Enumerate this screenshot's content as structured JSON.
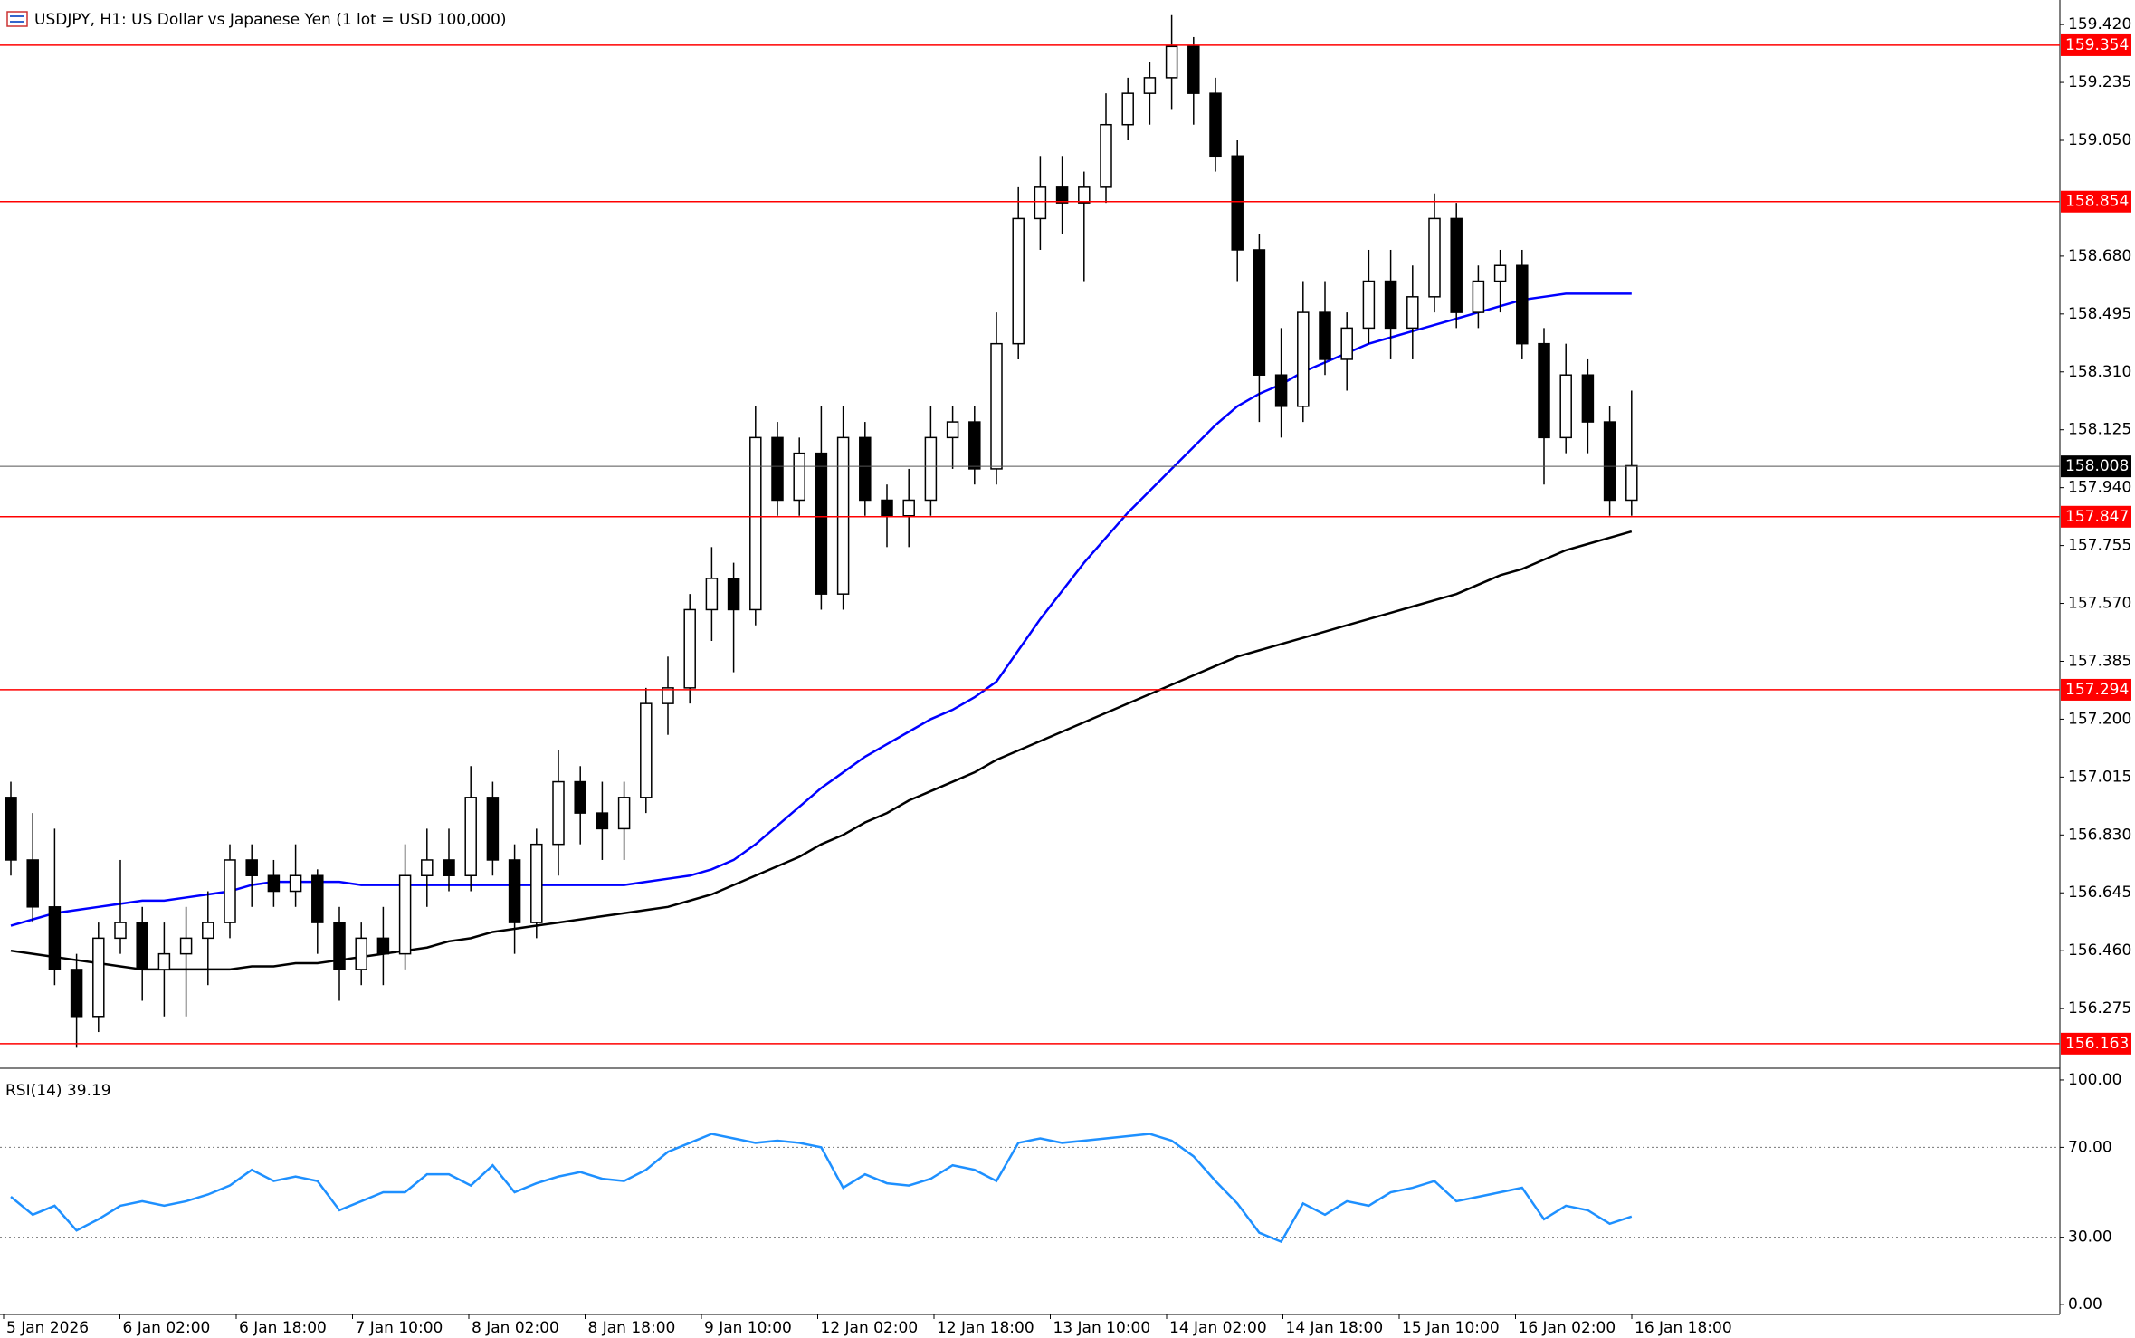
{
  "chart_data": {
    "type": "candlestick",
    "title": "USDJPY, H1:  US Dollar vs Japanese Yen (1 lot = USD 100,000)",
    "x_labels": [
      "5 Jan 2026",
      "6 Jan 02:00",
      "6 Jan 18:00",
      "7 Jan 10:00",
      "8 Jan 02:00",
      "8 Jan 18:00",
      "9 Jan 10:00",
      "12 Jan 02:00",
      "12 Jan 18:00",
      "13 Jan 10:00",
      "14 Jan 02:00",
      "14 Jan 18:00",
      "15 Jan 10:00",
      "16 Jan 02:00",
      "16 Jan 18:00"
    ],
    "ylim": [
      156.096,
      159.484
    ],
    "yticks": [
      {
        "value": 159.42,
        "label": "159.420"
      },
      159.235,
      {
        "value": 159.05,
        "label": "159.050"
      },
      {
        "value": 158.68,
        "label": "158.680"
      },
      158.495,
      {
        "value": 158.31,
        "label": "158.310"
      },
      158.125,
      {
        "value": 157.94,
        "label": "157.940"
      },
      157.755,
      {
        "value": 157.57,
        "label": "157.570"
      },
      157.385,
      {
        "value": 157.2,
        "label": "157.200"
      },
      157.015,
      {
        "value": 156.83,
        "label": "156.830"
      },
      156.645,
      {
        "value": 156.46,
        "label": "156.460"
      },
      156.275
    ],
    "up_color": "#ffffff",
    "down_color": "#000000",
    "ohlc": [
      [
        156.95,
        157.0,
        156.7,
        156.75
      ],
      [
        156.75,
        156.9,
        156.55,
        156.6
      ],
      [
        156.6,
        156.85,
        156.35,
        156.4
      ],
      [
        156.4,
        156.45,
        156.15,
        156.25
      ],
      [
        156.25,
        156.55,
        156.2,
        156.5
      ],
      [
        156.5,
        156.75,
        156.45,
        156.55
      ],
      [
        156.55,
        156.6,
        156.3,
        156.4
      ],
      [
        156.4,
        156.55,
        156.25,
        156.45
      ],
      [
        156.45,
        156.6,
        156.25,
        156.5
      ],
      [
        156.5,
        156.65,
        156.35,
        156.55
      ],
      [
        156.55,
        156.8,
        156.5,
        156.75
      ],
      [
        156.75,
        156.8,
        156.6,
        156.7
      ],
      [
        156.7,
        156.75,
        156.6,
        156.65
      ],
      [
        156.65,
        156.8,
        156.6,
        156.7
      ],
      [
        156.7,
        156.72,
        156.45,
        156.55
      ],
      [
        156.55,
        156.6,
        156.3,
        156.4
      ],
      [
        156.4,
        156.55,
        156.35,
        156.5
      ],
      [
        156.5,
        156.6,
        156.35,
        156.45
      ],
      [
        156.45,
        156.8,
        156.4,
        156.7
      ],
      [
        156.7,
        156.85,
        156.6,
        156.75
      ],
      [
        156.75,
        156.85,
        156.65,
        156.7
      ],
      [
        156.7,
        157.05,
        156.65,
        156.95
      ],
      [
        156.95,
        157.0,
        156.7,
        156.75
      ],
      [
        156.75,
        156.8,
        156.45,
        156.55
      ],
      [
        156.55,
        156.85,
        156.5,
        156.8
      ],
      [
        156.8,
        157.1,
        156.7,
        157.0
      ],
      [
        157.0,
        157.05,
        156.8,
        156.9
      ],
      [
        156.9,
        157.0,
        156.75,
        156.85
      ],
      [
        156.85,
        157.0,
        156.75,
        156.95
      ],
      [
        156.95,
        157.3,
        156.9,
        157.25
      ],
      [
        157.25,
        157.4,
        157.15,
        157.3
      ],
      [
        157.3,
        157.6,
        157.25,
        157.55
      ],
      [
        157.55,
        157.75,
        157.45,
        157.65
      ],
      [
        157.65,
        157.7,
        157.35,
        157.55
      ],
      [
        157.55,
        158.2,
        157.5,
        158.1
      ],
      [
        158.1,
        158.15,
        157.85,
        157.9
      ],
      [
        157.9,
        158.1,
        157.85,
        158.05
      ],
      [
        158.05,
        158.2,
        157.55,
        157.6
      ],
      [
        157.6,
        158.2,
        157.55,
        158.1
      ],
      [
        158.1,
        158.15,
        157.85,
        157.9
      ],
      [
        157.9,
        157.95,
        157.75,
        157.85
      ],
      [
        157.85,
        158.0,
        157.75,
        157.9
      ],
      [
        157.9,
        158.2,
        157.85,
        158.1
      ],
      [
        158.1,
        158.2,
        158.0,
        158.15
      ],
      [
        158.15,
        158.2,
        157.95,
        158.0
      ],
      [
        158.0,
        158.5,
        157.95,
        158.4
      ],
      [
        158.4,
        158.9,
        158.35,
        158.8
      ],
      [
        158.8,
        159.0,
        158.7,
        158.9
      ],
      [
        158.9,
        159.0,
        158.75,
        158.85
      ],
      [
        158.85,
        158.95,
        158.6,
        158.9
      ],
      [
        158.9,
        159.2,
        158.85,
        159.1
      ],
      [
        159.1,
        159.25,
        159.05,
        159.2
      ],
      [
        159.2,
        159.3,
        159.1,
        159.25
      ],
      [
        159.25,
        159.45,
        159.15,
        159.35
      ],
      [
        159.35,
        159.38,
        159.1,
        159.2
      ],
      [
        159.2,
        159.25,
        158.95,
        159.0
      ],
      [
        159.0,
        159.05,
        158.6,
        158.7
      ],
      [
        158.7,
        158.75,
        158.15,
        158.3
      ],
      [
        158.3,
        158.45,
        158.1,
        158.2
      ],
      [
        158.2,
        158.6,
        158.15,
        158.5
      ],
      [
        158.5,
        158.6,
        158.3,
        158.35
      ],
      [
        158.35,
        158.5,
        158.25,
        158.45
      ],
      [
        158.45,
        158.7,
        158.4,
        158.6
      ],
      [
        158.6,
        158.7,
        158.35,
        158.45
      ],
      [
        158.45,
        158.65,
        158.35,
        158.55
      ],
      [
        158.55,
        158.88,
        158.5,
        158.8
      ],
      [
        158.8,
        158.85,
        158.45,
        158.5
      ],
      [
        158.5,
        158.65,
        158.45,
        158.6
      ],
      [
        158.6,
        158.7,
        158.5,
        158.65
      ],
      [
        158.65,
        158.7,
        158.35,
        158.4
      ],
      [
        158.4,
        158.45,
        157.95,
        158.1
      ],
      [
        158.1,
        158.4,
        158.05,
        158.3
      ],
      [
        158.3,
        158.35,
        158.05,
        158.15
      ],
      [
        158.15,
        158.2,
        157.85,
        157.9
      ],
      [
        157.9,
        158.25,
        157.85,
        158.01
      ]
    ],
    "ma_lines": [
      {
        "color": "#0000ff",
        "values": [
          156.54,
          156.56,
          156.58,
          156.59,
          156.6,
          156.61,
          156.62,
          156.62,
          156.63,
          156.64,
          156.65,
          156.67,
          156.68,
          156.68,
          156.68,
          156.68,
          156.67,
          156.67,
          156.67,
          156.67,
          156.67,
          156.67,
          156.67,
          156.67,
          156.67,
          156.67,
          156.67,
          156.67,
          156.67,
          156.68,
          156.69,
          156.7,
          156.72,
          156.75,
          156.8,
          156.86,
          156.92,
          156.98,
          157.03,
          157.08,
          157.12,
          157.16,
          157.2,
          157.23,
          157.27,
          157.32,
          157.42,
          157.52,
          157.61,
          157.7,
          157.78,
          157.86,
          157.93,
          158.0,
          158.07,
          158.14,
          158.2,
          158.24,
          158.27,
          158.31,
          158.34,
          158.37,
          158.4,
          158.42,
          158.44,
          158.46,
          158.48,
          158.5,
          158.52,
          158.54,
          158.55,
          158.56,
          158.56,
          158.56,
          158.56
        ]
      },
      {
        "color": "#000000",
        "values": [
          156.46,
          156.45,
          156.44,
          156.43,
          156.42,
          156.41,
          156.4,
          156.4,
          156.4,
          156.4,
          156.4,
          156.41,
          156.41,
          156.42,
          156.42,
          156.43,
          156.44,
          156.45,
          156.46,
          156.47,
          156.49,
          156.5,
          156.52,
          156.53,
          156.54,
          156.55,
          156.56,
          156.57,
          156.58,
          156.59,
          156.6,
          156.62,
          156.64,
          156.67,
          156.7,
          156.73,
          156.76,
          156.8,
          156.83,
          156.87,
          156.9,
          156.94,
          156.97,
          157.0,
          157.03,
          157.07,
          157.1,
          157.13,
          157.16,
          157.19,
          157.22,
          157.25,
          157.28,
          157.31,
          157.34,
          157.37,
          157.4,
          157.42,
          157.44,
          157.46,
          157.48,
          157.5,
          157.52,
          157.54,
          157.56,
          157.58,
          157.6,
          157.63,
          157.66,
          157.68,
          157.71,
          157.74,
          157.76,
          157.78,
          157.8
        ]
      }
    ],
    "levels": [
      159.354,
      158.854,
      157.847,
      157.294,
      156.163
    ],
    "level_color": "#ff0000",
    "last_price": 158.008,
    "last_price_color": "#000000",
    "indicator": {
      "title": "RSI(14) 39.19",
      "color": "#1e90ff",
      "ylim": [
        -4.4,
        102.4
      ],
      "yticks": [
        {
          "value": 100,
          "label": "100.00"
        },
        {
          "value": 70,
          "label": "70.00"
        },
        {
          "value": 30,
          "label": "30.00"
        },
        {
          "value": 0,
          "label": "0.00"
        }
      ],
      "dotted_levels": [
        70,
        30
      ],
      "values": [
        48,
        40,
        44,
        33,
        38,
        44,
        46,
        44,
        46,
        49,
        53,
        60,
        55,
        57,
        55,
        42,
        46,
        50,
        50,
        58,
        58,
        53,
        62,
        50,
        54,
        57,
        59,
        56,
        55,
        60,
        68,
        72,
        76,
        74,
        72,
        73,
        72,
        70,
        52,
        58,
        54,
        53,
        56,
        62,
        60,
        55,
        72,
        74,
        72,
        73,
        74,
        75,
        76,
        73,
        66,
        55,
        45,
        32,
        28,
        45,
        40,
        46,
        44,
        50,
        52,
        55,
        46,
        48,
        50,
        52,
        38,
        44,
        42,
        36,
        39.19
      ]
    }
  }
}
